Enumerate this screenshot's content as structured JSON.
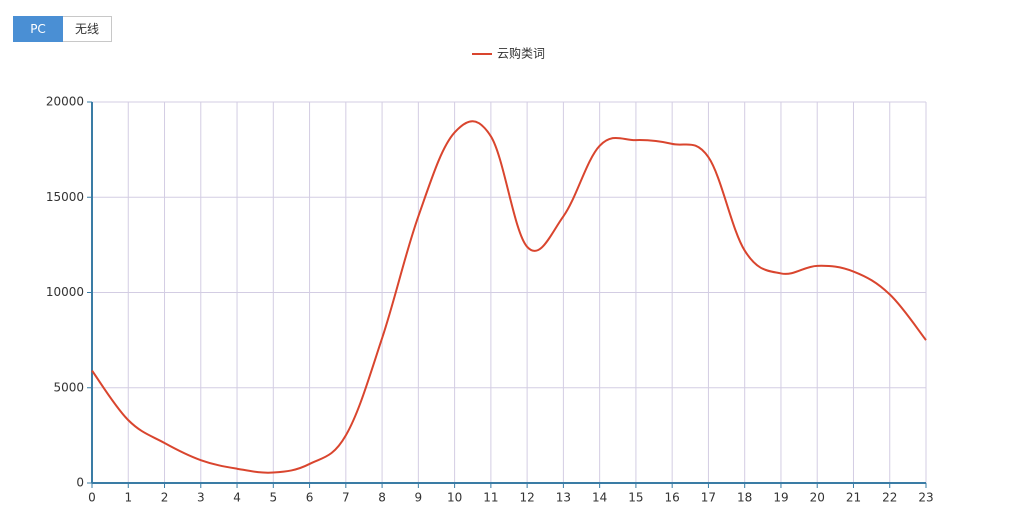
{
  "tabs": [
    "PC",
    "无线"
  ],
  "chart_data": {
    "type": "line",
    "x": [
      0,
      1,
      2,
      3,
      4,
      5,
      6,
      7,
      8,
      9,
      10,
      11,
      12,
      13,
      14,
      15,
      16,
      17,
      18,
      19,
      20,
      21,
      22,
      23
    ],
    "xlim": [
      0,
      23
    ],
    "xticks": [
      0,
      1,
      2,
      3,
      4,
      5,
      6,
      7,
      8,
      9,
      10,
      11,
      12,
      13,
      14,
      15,
      16,
      17,
      18,
      19,
      20,
      21,
      22,
      23
    ],
    "ylim": [
      0,
      20000
    ],
    "yticks": [
      0,
      5000,
      10000,
      15000,
      20000
    ],
    "grid": true,
    "legend": "top",
    "series": [
      {
        "name": "云购类词",
        "color": "#d9452e",
        "values": [
          5900,
          3300,
          2100,
          1200,
          750,
          550,
          1000,
          2500,
          7600,
          14000,
          18400,
          18200,
          12400,
          14000,
          17700,
          18000,
          17800,
          17100,
          12200,
          11000,
          11400,
          11100,
          9900,
          7500
        ]
      }
    ]
  }
}
